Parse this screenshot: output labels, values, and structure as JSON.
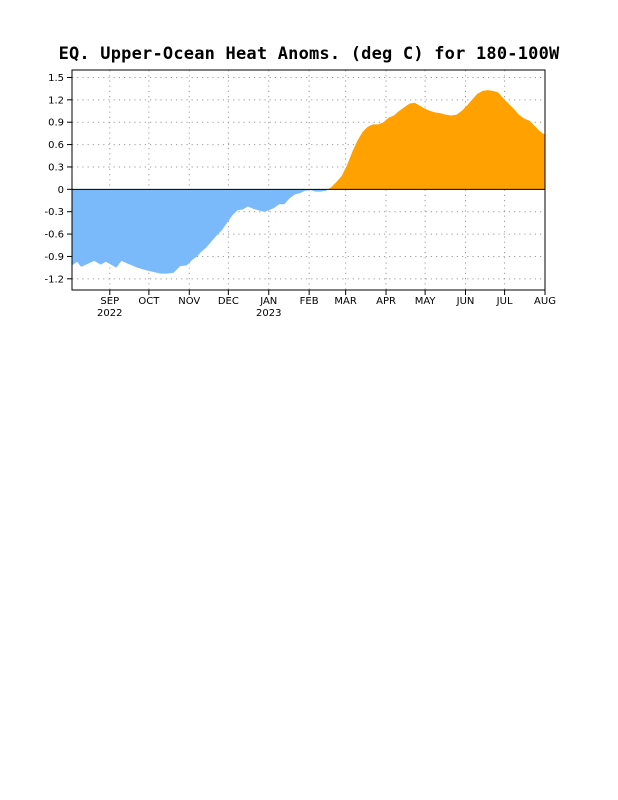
{
  "chart_data": {
    "type": "area",
    "title": "EQ. Upper-Ocean Heat Anoms. (deg C) for 180-100W",
    "xlabel": "",
    "ylabel": "",
    "ylim": [
      -1.35,
      1.6
    ],
    "yticks": [
      1.5,
      1.2,
      0.9,
      0.6,
      0.3,
      0,
      -0.3,
      -0.6,
      -0.9,
      -1.2
    ],
    "ytick_labels": [
      "1.5",
      "1.2",
      "0.9",
      "0.6",
      "0.3",
      "0",
      "-0.3",
      "-0.6",
      "-0.9",
      "-1.2"
    ],
    "xlim": [
      "2022-08-03",
      "2023-08-01"
    ],
    "xticks": [
      {
        "date": "2022-09-01",
        "label": "SEP",
        "year": "2022"
      },
      {
        "date": "2022-10-01",
        "label": "OCT",
        "year": ""
      },
      {
        "date": "2022-11-01",
        "label": "NOV",
        "year": ""
      },
      {
        "date": "2022-12-01",
        "label": "DEC",
        "year": ""
      },
      {
        "date": "2023-01-01",
        "label": "JAN",
        "year": "2023"
      },
      {
        "date": "2023-02-01",
        "label": "FEB",
        "year": ""
      },
      {
        "date": "2023-03-01",
        "label": "MAR",
        "year": ""
      },
      {
        "date": "2023-04-01",
        "label": "APR",
        "year": ""
      },
      {
        "date": "2023-05-01",
        "label": "MAY",
        "year": ""
      },
      {
        "date": "2023-06-01",
        "label": "JUN",
        "year": ""
      },
      {
        "date": "2023-07-01",
        "label": "JUL",
        "year": ""
      },
      {
        "date": "2023-08-01",
        "label": "AUG",
        "year": ""
      }
    ],
    "grid": true,
    "positive_color": "#ffa100",
    "negative_color": "#7ab9fa",
    "series": [
      {
        "x": [
          "2022-08-03",
          "2022-08-07",
          "2022-08-10",
          "2022-08-15",
          "2022-08-20",
          "2022-08-25",
          "2022-08-29",
          "2022-09-03",
          "2022-09-06",
          "2022-09-10",
          "2022-09-14",
          "2022-09-18",
          "2022-09-22",
          "2022-09-26",
          "2022-09-30",
          "2022-10-05",
          "2022-10-10",
          "2022-10-15",
          "2022-10-20",
          "2022-10-25",
          "2022-10-30",
          "2022-11-03",
          "2022-11-07",
          "2022-11-10",
          "2022-11-14",
          "2022-11-18",
          "2022-11-22",
          "2022-11-26",
          "2022-11-30",
          "2022-12-04",
          "2022-12-08",
          "2022-12-12",
          "2022-12-16",
          "2022-12-20",
          "2022-12-24",
          "2022-12-28",
          "2023-01-01",
          "2023-01-05",
          "2023-01-09",
          "2023-01-13",
          "2023-01-17",
          "2023-01-21",
          "2023-01-25",
          "2023-01-29",
          "2023-02-02",
          "2023-02-06",
          "2023-02-10",
          "2023-02-14",
          "2023-02-18",
          "2023-02-22",
          "2023-02-26",
          "2023-03-02",
          "2023-03-06",
          "2023-03-10",
          "2023-03-14",
          "2023-03-18",
          "2023-03-22",
          "2023-03-26",
          "2023-03-30",
          "2023-04-03",
          "2023-04-07",
          "2023-04-11",
          "2023-04-15",
          "2023-04-19",
          "2023-04-23",
          "2023-04-27",
          "2023-05-01",
          "2023-05-05",
          "2023-05-09",
          "2023-05-13",
          "2023-05-17",
          "2023-05-21",
          "2023-05-25",
          "2023-05-29",
          "2023-06-02",
          "2023-06-06",
          "2023-06-10",
          "2023-06-14",
          "2023-06-18",
          "2023-06-22",
          "2023-06-26",
          "2023-06-30",
          "2023-07-04",
          "2023-07-08",
          "2023-07-12",
          "2023-07-16",
          "2023-07-20",
          "2023-07-24",
          "2023-07-28",
          "2023-08-01"
        ],
        "values": [
          -1.02,
          -0.97,
          -1.04,
          -1.0,
          -0.96,
          -1.01,
          -0.97,
          -1.02,
          -1.05,
          -0.96,
          -0.99,
          -1.02,
          -1.05,
          -1.07,
          -1.09,
          -1.11,
          -1.13,
          -1.13,
          -1.12,
          -1.03,
          -1.02,
          -0.95,
          -0.9,
          -0.84,
          -0.78,
          -0.7,
          -0.62,
          -0.55,
          -0.45,
          -0.35,
          -0.28,
          -0.27,
          -0.23,
          -0.26,
          -0.28,
          -0.3,
          -0.28,
          -0.25,
          -0.2,
          -0.2,
          -0.12,
          -0.07,
          -0.05,
          -0.02,
          -0.01,
          -0.03,
          -0.03,
          -0.02,
          0.03,
          0.1,
          0.18,
          0.32,
          0.5,
          0.65,
          0.77,
          0.84,
          0.87,
          0.87,
          0.9,
          0.96,
          0.99,
          1.05,
          1.1,
          1.15,
          1.16,
          1.12,
          1.08,
          1.05,
          1.03,
          1.02,
          1.0,
          0.99,
          1.0,
          1.05,
          1.12,
          1.2,
          1.28,
          1.32,
          1.33,
          1.32,
          1.3,
          1.22,
          1.15,
          1.08,
          1.0,
          0.95,
          0.92,
          0.85,
          0.78,
          0.73
        ]
      }
    ]
  }
}
